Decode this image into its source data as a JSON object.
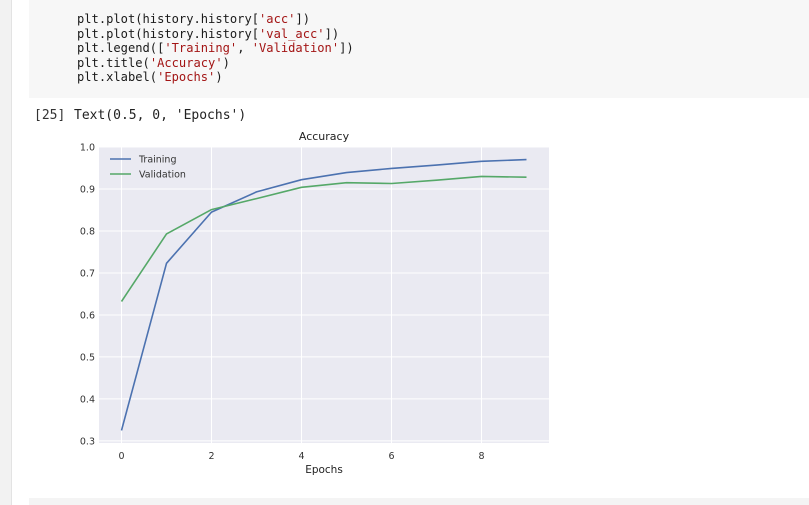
{
  "code_cell": {
    "lines": [
      [
        "plt.plot(history.history[",
        "'acc'",
        "])"
      ],
      [
        "plt.plot(history.history[",
        "'val_acc'",
        "])"
      ],
      [
        "plt.legend([",
        "'Training'",
        ", ",
        "'Validation'",
        "])"
      ],
      [
        "plt.title(",
        "'Accuracy'",
        ")"
      ],
      [
        "plt.xlabel(",
        "'Epochs'",
        ")"
      ]
    ]
  },
  "output": {
    "execution_count": "[25]",
    "text": "Text(0.5, 0, 'Epochs')"
  },
  "colors": {
    "training": "#4c72b0",
    "validation": "#55a868",
    "plot_bg": "#eaeaf2",
    "grid": "#ffffff"
  },
  "chart_data": {
    "type": "line",
    "title": "Accuracy",
    "xlabel": "Epochs",
    "ylabel": "",
    "xlim": [
      -0.5,
      9.5
    ],
    "ylim": [
      0.295,
      1.0
    ],
    "xticks": [
      0,
      2,
      4,
      6,
      8
    ],
    "yticks": [
      0.3,
      0.4,
      0.5,
      0.6,
      0.7,
      0.8,
      0.9,
      1.0
    ],
    "ytick_labels": [
      "0.3",
      "0.4",
      "0.5",
      "0.6",
      "0.7",
      "0.8",
      "0.9",
      "1.0"
    ],
    "grid": true,
    "legend_position": "top-left",
    "x": [
      0,
      1,
      2,
      3,
      4,
      5,
      6,
      7,
      8,
      9
    ],
    "series": [
      {
        "name": "Training",
        "color_key": "training",
        "values": [
          0.325,
          0.723,
          0.845,
          0.893,
          0.922,
          0.939,
          0.949,
          0.957,
          0.966,
          0.97
        ]
      },
      {
        "name": "Validation",
        "color_key": "validation",
        "values": [
          0.632,
          0.793,
          0.851,
          0.877,
          0.904,
          0.915,
          0.913,
          0.921,
          0.93,
          0.928
        ]
      }
    ]
  }
}
